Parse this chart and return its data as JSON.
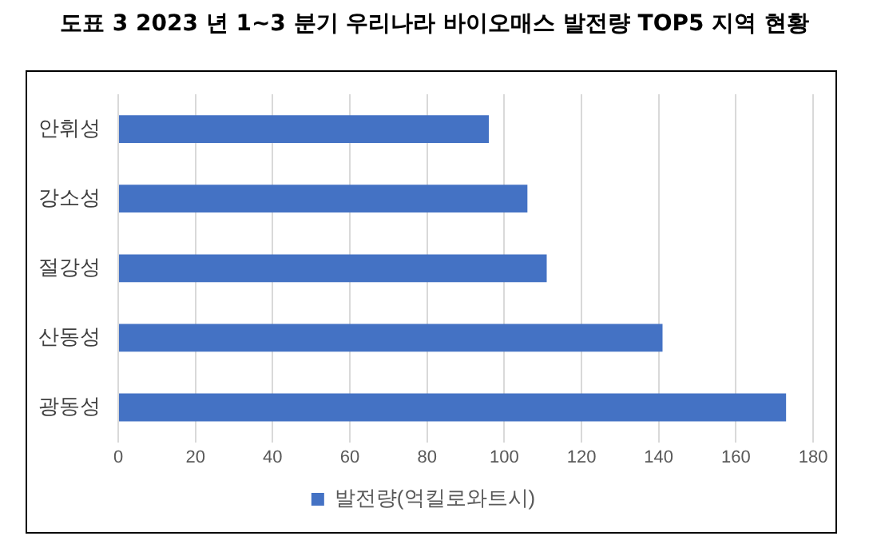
{
  "chart_data": {
    "type": "bar",
    "orientation": "horizontal",
    "title": "도표 3 2023 년 1~3 분기 우리나라 바이오매스 발전량 TOP5 지역 현황",
    "categories": [
      "안휘성",
      "강소성",
      "절강성",
      "산동성",
      "광동성"
    ],
    "series": [
      {
        "name": "발전량(억킬로와트시)",
        "color": "#4472c4",
        "values": [
          96,
          106,
          111,
          141,
          173
        ]
      }
    ],
    "xlim": [
      0,
      180
    ],
    "xticks": [
      0,
      20,
      40,
      60,
      80,
      100,
      120,
      140,
      160,
      180
    ],
    "grid": "x",
    "legend": "bottom"
  }
}
